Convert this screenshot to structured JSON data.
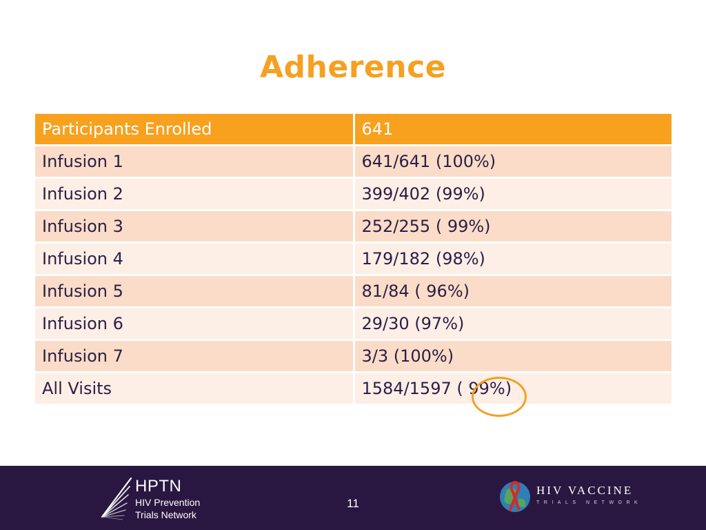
{
  "slide": {
    "title": "Adherence",
    "page_number": "11"
  },
  "table": {
    "header": [
      "Participants Enrolled",
      "641"
    ],
    "rows": [
      [
        "Infusion 1",
        "641/641 (100%)"
      ],
      [
        "Infusion 2",
        "399/402 (99%)"
      ],
      [
        "Infusion 3",
        "252/255 ( 99%)"
      ],
      [
        "Infusion 4",
        "179/182 (98%)"
      ],
      [
        "Infusion 5",
        "81/84 ( 96%)"
      ],
      [
        "Infusion 6",
        "29/30 (97%)"
      ],
      [
        "Infusion 7",
        "3/3 (100%)"
      ],
      [
        "All Visits",
        "1584/1597 ( 99%)"
      ]
    ]
  },
  "footer": {
    "hptn": {
      "name": "HPTN",
      "line1": "HIV Prevention",
      "line2": "Trials Network"
    },
    "hvtn": {
      "name": "HIV VACCINE",
      "sub": "TRIALS NETWORK"
    }
  },
  "colors": {
    "accent_orange": "#f5a020",
    "header_fill": "#f7a11f",
    "row_dark": "#fbdcc8",
    "row_light": "#fdeee6",
    "footer_bg": "#2a1741",
    "text": "#2a1f45"
  },
  "icons": [
    "hptn-starburst-logo",
    "hvtn-globe-ribbon-logo"
  ]
}
